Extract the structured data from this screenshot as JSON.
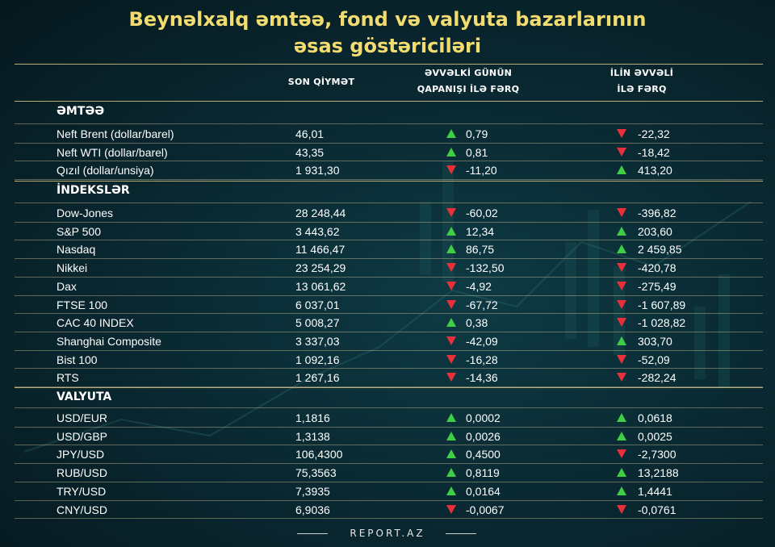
{
  "title_line1": "Beynəlxalq əmtəə, fond və valyuta  bazarlarının",
  "title_line2": "əsas göstəriciləri",
  "columns": {
    "price": "SON QİYMƏT",
    "prev_day_1": "ƏVVƏLKİ GÜNÜN",
    "prev_day_2": "QAPANIŞI İLƏ FƏRQ",
    "year_1": "İLİN ƏVVƏLİ",
    "year_2": "İLƏ FƏRQ"
  },
  "sections": [
    {
      "title": "ƏMTƏƏ",
      "rows": [
        {
          "name": "Neft Brent (dollar/barel)",
          "price": "46,01",
          "d1": "0,79",
          "d1_dir": "up",
          "d2": "-22,32",
          "d2_dir": "down"
        },
        {
          "name": "Neft WTI (dollar/barel)",
          "price": "43,35",
          "d1": "0,81",
          "d1_dir": "up",
          "d2": "-18,42",
          "d2_dir": "down"
        },
        {
          "name": "Qızıl (dollar/unsiya)",
          "price": "1 931,30",
          "d1": "-11,20",
          "d1_dir": "down",
          "d2": "413,20",
          "d2_dir": "up"
        }
      ]
    },
    {
      "title": "İNDEKSLƏR",
      "rows": [
        {
          "name": "Dow-Jones",
          "price": "28 248,44",
          "d1": "-60,02",
          "d1_dir": "down",
          "d2": "-396,82",
          "d2_dir": "down"
        },
        {
          "name": "S&P 500",
          "price": "3 443,62",
          "d1": "12,34",
          "d1_dir": "up",
          "d2": "203,60",
          "d2_dir": "up"
        },
        {
          "name": "Nasdaq",
          "price": "11 466,47",
          "d1": "86,75",
          "d1_dir": "up",
          "d2": "2 459,85",
          "d2_dir": "up"
        },
        {
          "name": "Nikkei",
          "price": "23 254,29",
          "d1": "-132,50",
          "d1_dir": "down",
          "d2": "-420,78",
          "d2_dir": "down"
        },
        {
          "name": "Dax",
          "price": "13 061,62",
          "d1": "-4,92",
          "d1_dir": "down",
          "d2": "-275,49",
          "d2_dir": "down"
        },
        {
          "name": "FTSE 100",
          "price": "6 037,01",
          "d1": "-67,72",
          "d1_dir": "down",
          "d2": "-1 607,89",
          "d2_dir": "down"
        },
        {
          "name": "CAC 40 INDEX",
          "price": "5 008,27",
          "d1": "0,38",
          "d1_dir": "up",
          "d2": "-1 028,82",
          "d2_dir": "down"
        },
        {
          "name": "Shanghai Composite",
          "price": "3 337,03",
          "d1": "-42,09",
          "d1_dir": "down",
          "d2": "303,70",
          "d2_dir": "up"
        },
        {
          "name": "Bist 100",
          "price": "1 092,16",
          "d1": "-16,28",
          "d1_dir": "down",
          "d2": "-52,09",
          "d2_dir": "down"
        },
        {
          "name": "RTS",
          "price": "1 267,16",
          "d1": "-14,36",
          "d1_dir": "down",
          "d2": "-282,24",
          "d2_dir": "down"
        }
      ]
    },
    {
      "title": "VALYUTA",
      "rows": [
        {
          "name": "USD/EUR",
          "price": "1,1816",
          "d1": "0,0002",
          "d1_dir": "up",
          "d2": "0,0618",
          "d2_dir": "up"
        },
        {
          "name": "USD/GBP",
          "price": "1,3138",
          "d1": "0,0026",
          "d1_dir": "up",
          "d2": "0,0025",
          "d2_dir": "up"
        },
        {
          "name": "JPY/USD",
          "price": "106,4300",
          "d1": "0,4500",
          "d1_dir": "up",
          "d2": "-2,7300",
          "d2_dir": "down"
        },
        {
          "name": "RUB/USD",
          "price": "75,3563",
          "d1": "0,8119",
          "d1_dir": "up",
          "d2": "13,2188",
          "d2_dir": "up"
        },
        {
          "name": "TRY/USD",
          "price": "7,3935",
          "d1": "0,0164",
          "d1_dir": "up",
          "d2": "1,4441",
          "d2_dir": "up"
        },
        {
          "name": "CNY/USD",
          "price": "6,9036",
          "d1": "-0,0067",
          "d1_dir": "down",
          "d2": "-0,0761",
          "d2_dir": "down"
        }
      ]
    }
  ],
  "footer": "REPORT.AZ",
  "colors": {
    "title": "#f2dc6f",
    "up": "#3fcf45",
    "down": "#e8303a",
    "rule": "#b7ad76"
  }
}
